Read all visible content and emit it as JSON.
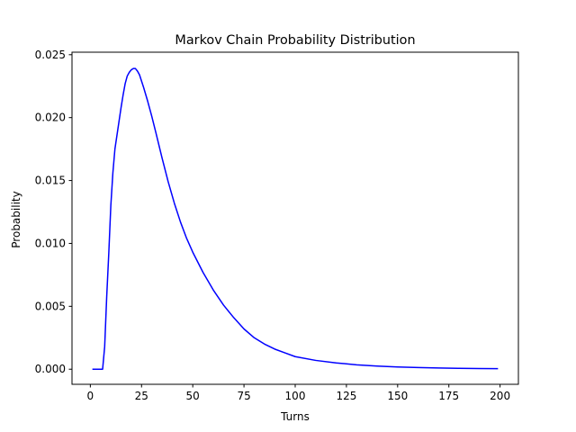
{
  "chart_data": {
    "type": "line",
    "title": "Markov Chain Probability Distribution",
    "xlabel": "Turns",
    "ylabel": "Probability",
    "xlim": [
      -8.95,
      208.95
    ],
    "ylim": [
      -0.0012,
      0.0252
    ],
    "xticks": [
      0,
      25,
      50,
      75,
      100,
      125,
      150,
      175,
      200
    ],
    "xtick_labels": [
      "0",
      "25",
      "50",
      "75",
      "100",
      "125",
      "150",
      "175",
      "200"
    ],
    "yticks": [
      0.0,
      0.005,
      0.01,
      0.015,
      0.02,
      0.025
    ],
    "ytick_labels": [
      "0.000",
      "0.005",
      "0.010",
      "0.015",
      "0.020",
      "0.025"
    ],
    "grid": false,
    "legend": "none",
    "series": [
      {
        "color": "#0000ff",
        "x": [
          1,
          2,
          3,
          4,
          5,
          6,
          7,
          8,
          9,
          10,
          11,
          12,
          13,
          14,
          15,
          16,
          17,
          18,
          19,
          20,
          21,
          22,
          23,
          24,
          25,
          26,
          28,
          30,
          32,
          35,
          38,
          41,
          44,
          47,
          50,
          55,
          60,
          65,
          70,
          75,
          80,
          85,
          90,
          95,
          100,
          110,
          120,
          130,
          140,
          150,
          160,
          170,
          180,
          190,
          199
        ],
        "y": [
          0.0,
          0.0,
          0.0,
          0.0,
          0.0,
          0.0,
          0.0018,
          0.0058,
          0.0092,
          0.013,
          0.0156,
          0.0175,
          0.0186,
          0.0197,
          0.0208,
          0.0218,
          0.0227,
          0.0233,
          0.0236,
          0.0238,
          0.0239,
          0.0239,
          0.0237,
          0.0234,
          0.0229,
          0.0224,
          0.0213,
          0.0201,
          0.0188,
          0.0168,
          0.0149,
          0.0132,
          0.0117,
          0.0104,
          0.0093,
          0.0077,
          0.0063,
          0.0051,
          0.0041,
          0.0032,
          0.0025,
          0.002,
          0.0016,
          0.0013,
          0.001,
          0.0007,
          0.0005,
          0.00035,
          0.00025,
          0.00018,
          0.00013,
          0.0001,
          7e-05,
          5e-05,
          4e-05
        ]
      }
    ]
  }
}
